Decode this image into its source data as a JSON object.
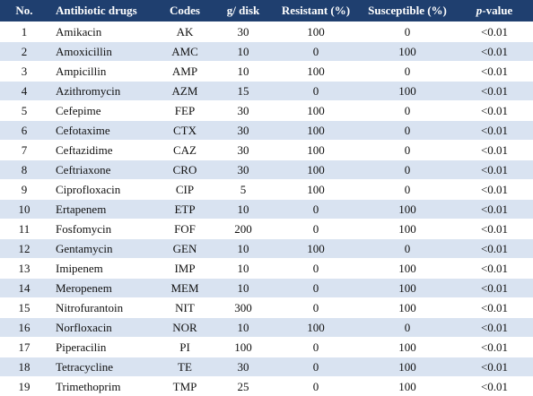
{
  "table": {
    "header": [
      "No.",
      "Antibiotic drugs",
      "Codes",
      "g/ disk",
      "Resistant (%)",
      "Susceptible (%)",
      "p-value"
    ],
    "rows": [
      [
        "1",
        "Amikacin",
        "AK",
        "30",
        "100",
        "0",
        "<0.01"
      ],
      [
        "2",
        "Amoxicillin",
        "AMC",
        "10",
        "0",
        "100",
        "<0.01"
      ],
      [
        "3",
        "Ampicillin",
        "AMP",
        "10",
        "100",
        "0",
        "<0.01"
      ],
      [
        "4",
        "Azithromycin",
        "AZM",
        "15",
        "0",
        "100",
        "<0.01"
      ],
      [
        "5",
        "Cefepime",
        "FEP",
        "30",
        "100",
        "0",
        "<0.01"
      ],
      [
        "6",
        "Cefotaxime",
        "CTX",
        "30",
        "100",
        "0",
        "<0.01"
      ],
      [
        "7",
        "Ceftazidime",
        "CAZ",
        "30",
        "100",
        "0",
        "<0.01"
      ],
      [
        "8",
        "Ceftriaxone",
        "CRO",
        "30",
        "100",
        "0",
        "<0.01"
      ],
      [
        "9",
        "Ciprofloxacin",
        "CIP",
        "5",
        "100",
        "0",
        "<0.01"
      ],
      [
        "10",
        "Ertapenem",
        "ETP",
        "10",
        "0",
        "100",
        "<0.01"
      ],
      [
        "11",
        "Fosfomycin",
        "FOF",
        "200",
        "0",
        "100",
        "<0.01"
      ],
      [
        "12",
        "Gentamycin",
        "GEN",
        "10",
        "100",
        "0",
        "<0.01"
      ],
      [
        "13",
        "Imipenem",
        "IMP",
        "10",
        "0",
        "100",
        "<0.01"
      ],
      [
        "14",
        "Meropenem",
        "MEM",
        "10",
        "0",
        "100",
        "<0.01"
      ],
      [
        "15",
        "Nitrofurantoin",
        "NIT",
        "300",
        "0",
        "100",
        "<0.01"
      ],
      [
        "16",
        "Norfloxacin",
        "NOR",
        "10",
        "100",
        "0",
        "<0.01"
      ],
      [
        "17",
        "Piperacilin",
        "PI",
        "100",
        "0",
        "100",
        "<0.01"
      ],
      [
        "18",
        "Tetracycline",
        "TE",
        "30",
        "0",
        "100",
        "<0.01"
      ],
      [
        "19",
        "Trimethoprim",
        "TMP",
        "25",
        "0",
        "100",
        "<0.01"
      ]
    ]
  }
}
